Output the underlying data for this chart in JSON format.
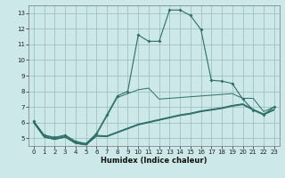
{
  "xlabel": "Humidex (Indice chaleur)",
  "background_color": "#cce8e8",
  "line_color": "#2e6e68",
  "grid_color": "#99bbbb",
  "xlim": [
    -0.5,
    23.5
  ],
  "ylim": [
    4.5,
    13.5
  ],
  "xticks": [
    0,
    1,
    2,
    3,
    4,
    5,
    6,
    7,
    8,
    9,
    10,
    11,
    12,
    13,
    14,
    15,
    16,
    17,
    18,
    19,
    20,
    21,
    22,
    23
  ],
  "yticks": [
    5,
    6,
    7,
    8,
    9,
    10,
    11,
    12,
    13
  ],
  "main_line": {
    "x": [
      0,
      1,
      2,
      3,
      4,
      5,
      6,
      7,
      8,
      9,
      10,
      11,
      12,
      13,
      14,
      15,
      16,
      17,
      18,
      19,
      20,
      21,
      22,
      23
    ],
    "y": [
      6.1,
      5.2,
      5.05,
      5.2,
      4.8,
      4.65,
      5.3,
      6.5,
      7.7,
      8.0,
      11.6,
      11.2,
      11.2,
      13.2,
      13.2,
      12.85,
      11.95,
      8.7,
      8.65,
      8.5,
      7.5,
      6.8,
      6.5,
      7.0
    ]
  },
  "extra_lines": [
    {
      "x": [
        0,
        1,
        2,
        3,
        4,
        5,
        6,
        7,
        8,
        9,
        10,
        11,
        12,
        13,
        14,
        15,
        16,
        17,
        18,
        19,
        20,
        21,
        22,
        23
      ],
      "y": [
        6.05,
        5.15,
        5.0,
        5.15,
        4.75,
        4.65,
        5.22,
        6.4,
        7.6,
        7.85,
        8.1,
        8.2,
        7.5,
        7.55,
        7.6,
        7.65,
        7.7,
        7.75,
        7.8,
        7.85,
        7.55,
        7.55,
        6.7,
        7.0
      ]
    },
    {
      "x": [
        0,
        1,
        2,
        3,
        4,
        5,
        6,
        7,
        8,
        9,
        10,
        11,
        12,
        13,
        14,
        15,
        16,
        17,
        18,
        19,
        20,
        21,
        22,
        23
      ],
      "y": [
        6.0,
        5.1,
        4.95,
        5.1,
        4.7,
        4.6,
        5.18,
        5.15,
        5.4,
        5.65,
        5.9,
        6.05,
        6.2,
        6.35,
        6.5,
        6.6,
        6.75,
        6.85,
        6.95,
        7.1,
        7.2,
        6.85,
        6.55,
        6.85
      ]
    },
    {
      "x": [
        0,
        1,
        2,
        3,
        4,
        5,
        6,
        7,
        8,
        9,
        10,
        11,
        12,
        13,
        14,
        15,
        16,
        17,
        18,
        19,
        20,
        21,
        22,
        23
      ],
      "y": [
        6.0,
        5.08,
        4.93,
        5.08,
        4.68,
        4.58,
        5.15,
        5.12,
        5.37,
        5.62,
        5.87,
        6.02,
        6.17,
        6.32,
        6.47,
        6.57,
        6.72,
        6.82,
        6.92,
        7.07,
        7.17,
        6.82,
        6.52,
        6.82
      ]
    },
    {
      "x": [
        0,
        1,
        2,
        3,
        4,
        5,
        6,
        7,
        8,
        9,
        10,
        11,
        12,
        13,
        14,
        15,
        16,
        17,
        18,
        19,
        20,
        21,
        22,
        23
      ],
      "y": [
        5.98,
        5.06,
        4.91,
        5.06,
        4.66,
        4.56,
        5.12,
        5.09,
        5.34,
        5.59,
        5.84,
        5.99,
        6.14,
        6.29,
        6.44,
        6.54,
        6.69,
        6.79,
        6.89,
        7.04,
        7.14,
        6.79,
        6.49,
        6.79
      ]
    }
  ]
}
